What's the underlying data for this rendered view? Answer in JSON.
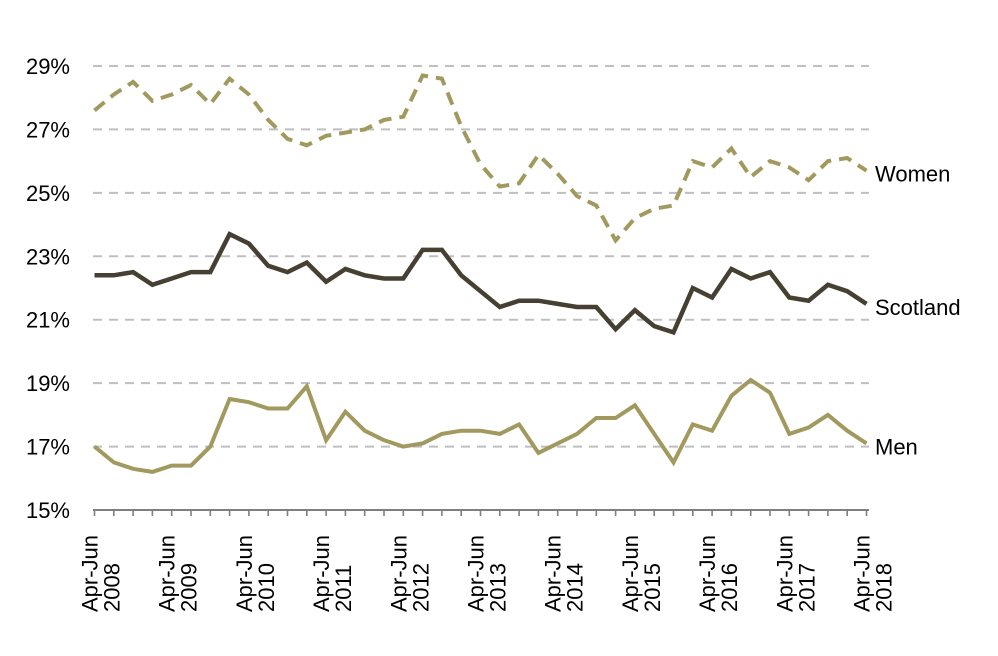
{
  "page": {
    "background_color": "#FFFFFF"
  },
  "chart_data": {
    "type": "line",
    "title": "",
    "xlabel": "",
    "ylabel": "",
    "ylim": [
      15,
      29
    ],
    "grid": {
      "visible": true,
      "style": "dashed",
      "color": "#BFBFBF"
    },
    "axis_color": "#7F7F7F",
    "legend_position": "right-inline",
    "y_axis": {
      "tick_labels": [
        "15%",
        "17%",
        "19%",
        "21%",
        "23%",
        "25%",
        "27%",
        "29%"
      ],
      "tick_values": [
        15,
        17,
        19,
        21,
        23,
        25,
        27,
        29
      ],
      "gridline_values": [
        17,
        19,
        21,
        23,
        25,
        27,
        29
      ]
    },
    "x_axis": {
      "points_count": 41,
      "minor_tick": "quarterly",
      "label_every_n_points": 4,
      "tick_labels": [
        "Apr-Jun 2008",
        "Apr-Jun 2009",
        "Apr-Jun 2010",
        "Apr-Jun 2011",
        "Apr-Jun 2012",
        "Apr-Jun 2013",
        "Apr-Jun 2014",
        "Apr-Jun 2015",
        "Apr-Jun 2016",
        "Apr-Jun 2017",
        "Apr-Jun 2018"
      ]
    },
    "series": [
      {
        "name": "Women",
        "color": "#A2995F",
        "line_style": "dashed",
        "values": [
          27.6,
          28.1,
          28.5,
          27.9,
          28.1,
          28.4,
          27.8,
          28.6,
          28.1,
          27.3,
          26.7,
          26.5,
          26.8,
          26.9,
          27.0,
          27.3,
          27.4,
          28.7,
          28.6,
          27.1,
          25.9,
          25.2,
          25.3,
          26.2,
          25.6,
          24.9,
          24.6,
          23.5,
          24.2,
          24.5,
          24.6,
          26.0,
          25.8,
          26.4,
          25.5,
          26.0,
          25.8,
          25.4,
          26.0,
          26.1,
          25.7
        ]
      },
      {
        "name": "Scotland",
        "color": "#454031",
        "line_style": "solid",
        "values": [
          22.4,
          22.4,
          22.5,
          22.1,
          22.3,
          22.5,
          22.5,
          23.7,
          23.4,
          22.7,
          22.5,
          22.8,
          22.2,
          22.6,
          22.4,
          22.3,
          22.3,
          23.2,
          23.2,
          22.4,
          21.9,
          21.4,
          21.6,
          21.6,
          21.5,
          21.4,
          21.4,
          20.7,
          21.3,
          20.8,
          20.6,
          22.0,
          21.7,
          22.6,
          22.3,
          22.5,
          21.7,
          21.6,
          22.1,
          21.9,
          21.5
        ]
      },
      {
        "name": "Men",
        "color": "#A2995F",
        "line_style": "solid",
        "values": [
          17.0,
          16.5,
          16.3,
          16.2,
          16.4,
          16.4,
          17.0,
          18.5,
          18.4,
          18.2,
          18.2,
          18.9,
          17.2,
          18.1,
          17.5,
          17.2,
          17.0,
          17.1,
          17.4,
          17.5,
          17.5,
          17.4,
          17.7,
          16.8,
          17.1,
          17.4,
          17.9,
          17.9,
          18.3,
          17.4,
          16.5,
          17.7,
          17.5,
          18.6,
          19.1,
          18.7,
          17.4,
          17.6,
          18.0,
          17.5,
          17.1
        ]
      }
    ]
  }
}
